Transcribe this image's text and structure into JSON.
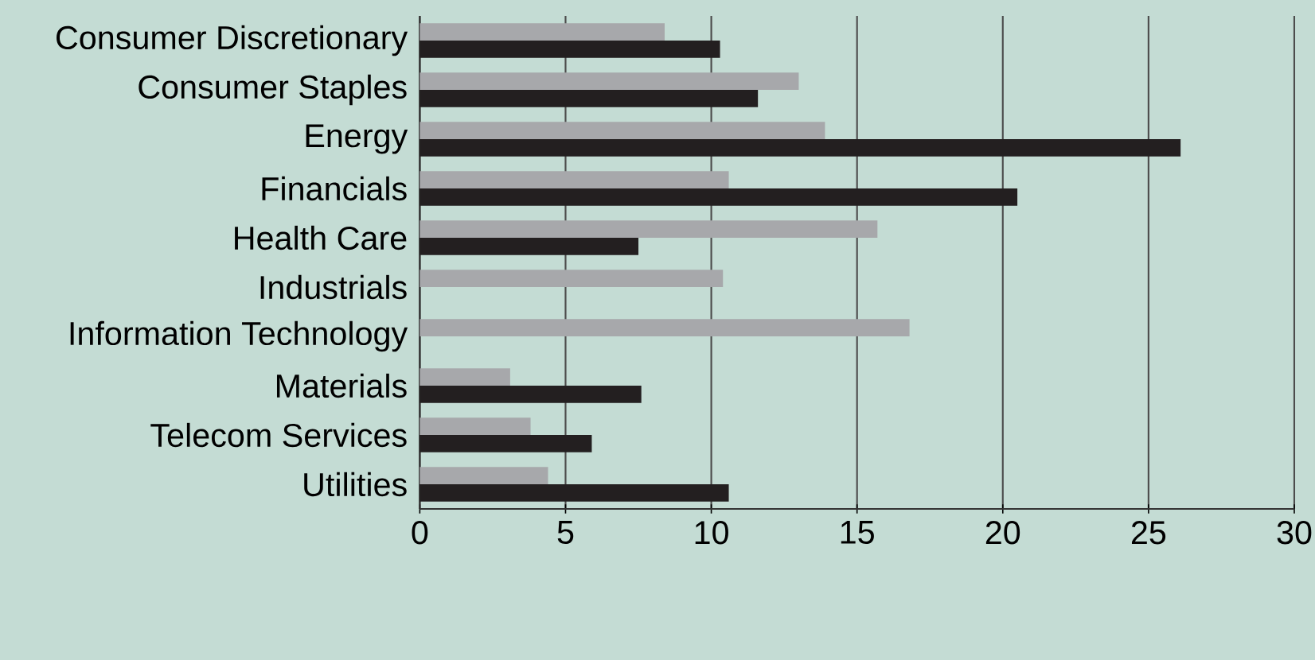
{
  "chart_data": {
    "type": "bar",
    "orientation": "horizontal",
    "categories": [
      "Consumer Discretionary",
      "Consumer Staples",
      "Energy",
      "Financials",
      "Health Care",
      "Industrials",
      "Information Technology",
      "Materials",
      "Telecom Services",
      "Utilities"
    ],
    "series": [
      {
        "color": "#a7a8ab",
        "values": [
          8.4,
          13.0,
          13.9,
          10.6,
          15.7,
          10.4,
          16.8,
          3.1,
          3.8,
          4.4
        ]
      },
      {
        "color": "#231f20",
        "values": [
          10.3,
          11.6,
          26.1,
          20.5,
          7.5,
          null,
          null,
          7.6,
          5.9,
          10.6
        ]
      }
    ],
    "xlim": [
      0,
      30
    ],
    "xticks": [
      0,
      5,
      10,
      15,
      20,
      25,
      30
    ],
    "grid": "x"
  }
}
